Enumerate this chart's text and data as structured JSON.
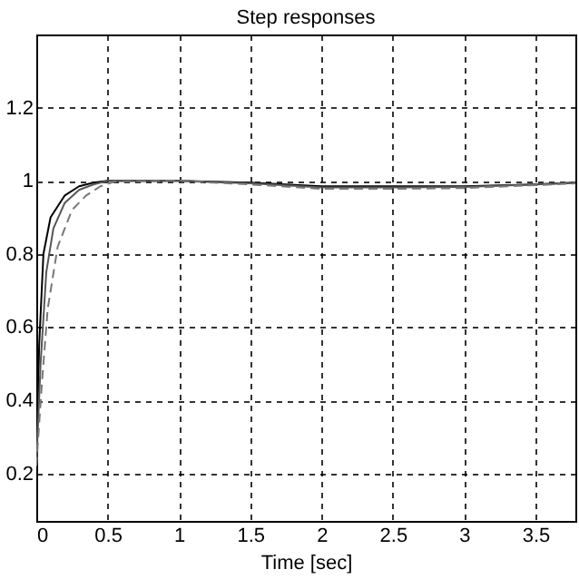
{
  "chart_data": {
    "type": "line",
    "title": "Step responses",
    "xlabel": "Time [sec]",
    "xlim": [
      0,
      3.78
    ],
    "xticks": [
      0,
      0.5,
      1,
      1.5,
      2,
      2.5,
      3,
      3.5
    ],
    "ylim": [
      0.07,
      1.4
    ],
    "yticks": [
      0.2,
      0.4,
      0.6,
      0.8,
      1,
      1.2
    ],
    "grid": true,
    "series": [
      {
        "color": "#000000",
        "line_style": "solid",
        "x": [
          0,
          0.02,
          0.05,
          0.1,
          0.2,
          0.3,
          0.4,
          0.5,
          1.0,
          1.5,
          2.0,
          2.5,
          3.0,
          3.5,
          3.78
        ],
        "values": [
          0.22,
          0.55,
          0.8,
          0.9,
          0.96,
          0.985,
          0.995,
          1.0,
          1.0,
          0.995,
          0.985,
          0.985,
          0.985,
          0.99,
          0.995
        ]
      },
      {
        "color": "#555555",
        "line_style": "solid",
        "x": [
          0,
          0.03,
          0.07,
          0.12,
          0.2,
          0.3,
          0.4,
          0.5,
          1.0,
          1.5,
          2.0,
          2.5,
          3.0,
          3.5,
          3.78
        ],
        "values": [
          0.22,
          0.5,
          0.75,
          0.87,
          0.94,
          0.975,
          0.99,
          1.0,
          1.0,
          0.993,
          0.982,
          0.982,
          0.983,
          0.99,
          0.995
        ]
      },
      {
        "color": "#777777",
        "line_style": "dashed",
        "x": [
          0,
          0.04,
          0.08,
          0.15,
          0.25,
          0.35,
          0.45,
          0.55,
          1.0,
          1.5,
          2.0,
          2.5,
          3.0,
          3.5,
          3.78
        ],
        "values": [
          0.22,
          0.45,
          0.65,
          0.82,
          0.92,
          0.96,
          0.985,
          0.998,
          1.0,
          0.99,
          0.978,
          0.978,
          0.98,
          0.988,
          0.993
        ]
      }
    ]
  }
}
